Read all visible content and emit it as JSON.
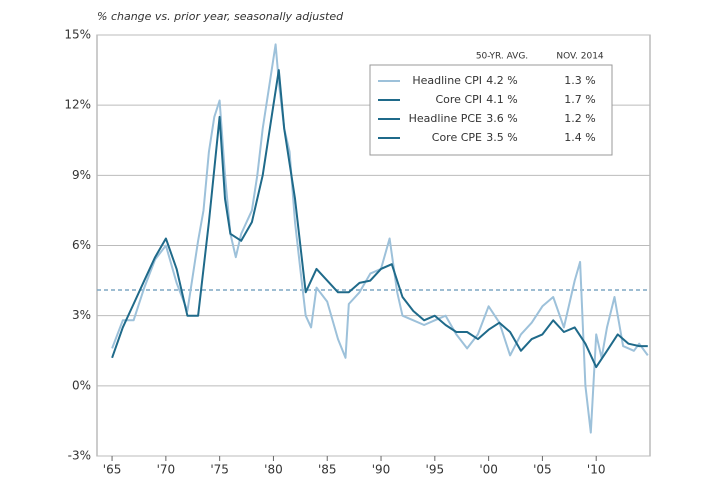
{
  "chart_data": {
    "type": "line",
    "subtitle": "% change vs. prior year, seasonally adjusted",
    "xlim": [
      1963.6,
      2015
    ],
    "xticks": [
      {
        "value": 1965,
        "label": "'65"
      },
      {
        "value": 1970,
        "label": "'70"
      },
      {
        "value": 1975,
        "label": "'75"
      },
      {
        "value": 1980,
        "label": "'80"
      },
      {
        "value": 1985,
        "label": "'85"
      },
      {
        "value": 1990,
        "label": "'90"
      },
      {
        "value": 1995,
        "label": "'95"
      },
      {
        "value": 2000,
        "label": "'00"
      },
      {
        "value": 2005,
        "label": "'05"
      },
      {
        "value": 2010,
        "label": "'10"
      }
    ],
    "ylim": [
      -3,
      15
    ],
    "yticks": [
      {
        "value": -3,
        "label": "-3%"
      },
      {
        "value": 0,
        "label": "0%"
      },
      {
        "value": 3,
        "label": "3%"
      },
      {
        "value": 6,
        "label": "6%"
      },
      {
        "value": 9,
        "label": "9%"
      },
      {
        "value": 12,
        "label": "12%"
      },
      {
        "value": 15,
        "label": "15%"
      }
    ],
    "grid": true,
    "reference_line": 4.1,
    "reference_color": "#7fa7c4",
    "legend": {
      "headers": [
        "50-YR. AVG.",
        "NOV. 2014"
      ],
      "rows": [
        [
          "Headline CPI",
          "4.2 %",
          "1.3 %"
        ],
        [
          "Core CPI",
          "4.1 %",
          "1.7 %"
        ],
        [
          "Headline PCE",
          "3.6 %",
          "1.2 %"
        ],
        [
          "Core CPE",
          "3.5 %",
          "1.4 %"
        ]
      ],
      "colors": [
        "#9dc1da",
        "#1f6a8a",
        "#1f6a8a",
        "#1f6a8a"
      ]
    },
    "series": [
      {
        "color": "#9dc1da",
        "x": [
          1965,
          1966,
          1967,
          1968,
          1969,
          1970,
          1971,
          1972,
          1973,
          1973.5,
          1974,
          1974.5,
          1975,
          1975.5,
          1976,
          1976.5,
          1977,
          1978,
          1978.5,
          1979,
          1979.5,
          1980.2,
          1980.5,
          1981,
          1981.5,
          1982,
          1982.5,
          1983,
          1983.5,
          1984,
          1985,
          1986,
          1986.7,
          1987,
          1988,
          1989,
          1990,
          1990.8,
          1991.5,
          1992,
          1993,
          1994,
          1995,
          1996,
          1997,
          1998,
          1999,
          2000,
          2001,
          2002,
          2003,
          2004,
          2005,
          2006,
          2007,
          2008,
          2008.5,
          2009,
          2009.5,
          2010,
          2010.5,
          2011,
          2011.7,
          2012.5,
          2013,
          2013.5,
          2014,
          2014.8
        ],
        "values": [
          1.6,
          2.8,
          2.8,
          4.2,
          5.4,
          6.0,
          4.4,
          3.2,
          6.2,
          7.5,
          10,
          11.5,
          12.2,
          9,
          6.5,
          5.5,
          6.5,
          7.5,
          9,
          11,
          12.5,
          14.6,
          13,
          11,
          10,
          7,
          5,
          3,
          2.5,
          4.2,
          3.6,
          2,
          1.2,
          3.5,
          4,
          4.8,
          5,
          6.3,
          4,
          3,
          2.8,
          2.6,
          2.8,
          3,
          2.2,
          1.6,
          2.2,
          3.4,
          2.7,
          1.3,
          2.2,
          2.7,
          3.4,
          3.8,
          2.5,
          4.5,
          5.3,
          0,
          -2,
          2.2,
          1.2,
          2.5,
          3.8,
          1.7,
          1.6,
          1.5,
          1.8,
          1.3
        ]
      },
      {
        "color": "#1f6a8a",
        "x": [
          1965,
          1966,
          1967,
          1968,
          1969,
          1970,
          1971,
          1972,
          1973,
          1974,
          1975,
          1975.5,
          1976,
          1977,
          1978,
          1979,
          1980,
          1980.5,
          1981,
          1981.5,
          1982,
          1983,
          1984,
          1985,
          1986,
          1987,
          1988,
          1989,
          1990,
          1991,
          1992,
          1993,
          1994,
          1995,
          1996,
          1997,
          1998,
          1999,
          2000,
          2001,
          2002,
          2003,
          2004,
          2005,
          2006,
          2007,
          2008,
          2009,
          2010,
          2011,
          2012,
          2013,
          2014,
          2014.8
        ],
        "values": [
          1.2,
          2.5,
          3.5,
          4.5,
          5.5,
          6.3,
          5,
          3,
          3,
          7,
          11.5,
          8,
          6.5,
          6.2,
          7,
          9,
          12,
          13.5,
          11,
          9.5,
          8,
          4,
          5,
          4.5,
          4,
          4,
          4.4,
          4.5,
          5,
          5.2,
          3.8,
          3.2,
          2.8,
          3,
          2.6,
          2.3,
          2.3,
          2,
          2.4,
          2.7,
          2.3,
          1.5,
          2,
          2.2,
          2.8,
          2.3,
          2.5,
          1.8,
          0.8,
          1.5,
          2.2,
          1.8,
          1.7,
          1.7
        ]
      }
    ]
  }
}
